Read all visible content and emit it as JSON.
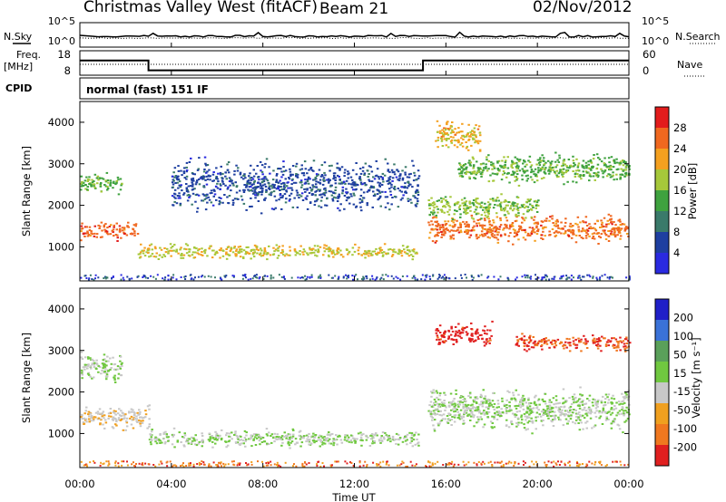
{
  "header": {
    "title": "Christmas Valley West (fitACF)",
    "beam": "Beam 21",
    "date": "02/Nov/2012"
  },
  "noise_panel": {
    "left_label": "N.Sky",
    "right_label": "N.Search",
    "left_ticks": [
      "10^5",
      "10^0"
    ],
    "right_ticks": [
      "10^5",
      "10^0"
    ]
  },
  "freq_panel": {
    "left_label_line1": "Freq.",
    "left_label_line2": "[MHz]",
    "right_label": "Nave",
    "left_ticks": [
      "18",
      "8"
    ],
    "right_ticks": [
      "60",
      "0"
    ],
    "freq_steps": [
      {
        "start_hour": 0,
        "end_hour": 3.0,
        "mhz": 14.0
      },
      {
        "start_hour": 3.0,
        "end_hour": 15.0,
        "mhz": 10.0
      },
      {
        "start_hour": 15.0,
        "end_hour": 24.0,
        "mhz": 14.0
      }
    ]
  },
  "cpid": {
    "label": "CPID",
    "program": "normal (fast) 151 IF"
  },
  "power_panel": {
    "ylabel": "Slant Range [km]",
    "y_ticks": [
      "4000",
      "3000",
      "2000",
      "1000"
    ],
    "colorbar_label": "Power [dB]",
    "colorbar_ticks": [
      "28",
      "24",
      "20",
      "16",
      "12",
      "8",
      "4"
    ],
    "colors": [
      "#2a2ae0",
      "#1e3fa0",
      "#3a7a6a",
      "#3fa23f",
      "#a6c83a",
      "#f4a020",
      "#f06820",
      "#e21c1c"
    ]
  },
  "velocity_panel": {
    "ylabel": "Slant Range [km]",
    "y_ticks": [
      "4000",
      "3000",
      "2000",
      "1000"
    ],
    "colorbar_label": "Velocity [m s⁻¹]",
    "colorbar_ticks": [
      "200",
      "100",
      "50",
      "15",
      "-15",
      "-50",
      "-100",
      "-200"
    ],
    "colors": [
      "#2020c8",
      "#3a72d8",
      "#5aa05a",
      "#70c840",
      "#c8c8c8",
      "#f0a020",
      "#f07820",
      "#e02020"
    ]
  },
  "x_axis": {
    "label": "Time UT",
    "ticks": [
      "00:00",
      "04:00",
      "08:00",
      "12:00",
      "16:00",
      "20:00",
      "00:00"
    ]
  },
  "chart_data": [
    {
      "type": "line",
      "title": "N.Sky / N.Search",
      "x": [
        0,
        4,
        8,
        12,
        16,
        20,
        24
      ],
      "series": [
        {
          "name": "N.Sky",
          "values": [
            1.2,
            1.2,
            1.2,
            1.2,
            1.2,
            1.2,
            1.2
          ]
        }
      ]
    },
    {
      "type": "line",
      "title": "Freq. [MHz]",
      "x": [
        0,
        3,
        3,
        15,
        15,
        24
      ],
      "series": [
        {
          "name": "Freq.",
          "values": [
            14,
            14,
            10,
            10,
            14,
            14
          ]
        }
      ],
      "ylim": [
        8,
        18
      ]
    },
    {
      "type": "heatmap",
      "title": "Power [dB]",
      "xlabel": "Time UT",
      "ylabel": "Slant Range [km]",
      "xlim": [
        0,
        24
      ],
      "ylim": [
        180,
        4500
      ],
      "color_range": [
        0,
        30
      ],
      "features": [
        {
          "x_start": 0.0,
          "x_end": 2.5,
          "range_center": 1400,
          "range_width": 300,
          "power": 25
        },
        {
          "x_start": 2.5,
          "x_end": 14.8,
          "range_center": 900,
          "range_width": 250,
          "power": 18
        },
        {
          "x_start": 0.0,
          "x_end": 1.8,
          "range_center": 2550,
          "range_width": 350,
          "power": 14
        },
        {
          "x_start": 4.0,
          "x_end": 14.8,
          "range_center": 2500,
          "range_width": 900,
          "power": 6
        },
        {
          "x_start": 15.2,
          "x_end": 24.0,
          "range_center": 1450,
          "range_width": 450,
          "power": 24
        },
        {
          "x_start": 15.2,
          "x_end": 20.0,
          "range_center": 2000,
          "range_width": 400,
          "power": 16
        },
        {
          "x_start": 16.5,
          "x_end": 24.0,
          "range_center": 2900,
          "range_width": 500,
          "power": 14
        },
        {
          "x_start": 15.5,
          "x_end": 17.5,
          "range_center": 3700,
          "range_width": 500,
          "power": 20
        }
      ]
    },
    {
      "type": "heatmap",
      "title": "Velocity [m s⁻¹]",
      "xlabel": "Time UT",
      "ylabel": "Slant Range [km]",
      "xlim": [
        0,
        24
      ],
      "ylim": [
        180,
        4500
      ],
      "color_range": [
        -200,
        200
      ],
      "features": [
        {
          "x_start": 0.0,
          "x_end": 3.0,
          "range_center": 1400,
          "range_width": 400,
          "velocity": -40
        },
        {
          "x_start": 3.0,
          "x_end": 14.8,
          "range_center": 900,
          "range_width": 300,
          "velocity": 0
        },
        {
          "x_start": 0.0,
          "x_end": 1.8,
          "range_center": 2600,
          "range_width": 500,
          "velocity": 0
        },
        {
          "x_start": 15.2,
          "x_end": 24.0,
          "range_center": 1600,
          "range_width": 700,
          "velocity": 0
        },
        {
          "x_start": 19.0,
          "x_end": 24.0,
          "range_center": 3200,
          "range_width": 300,
          "velocity": -150
        },
        {
          "x_start": 15.5,
          "x_end": 18.0,
          "range_center": 3400,
          "range_width": 400,
          "velocity": -180
        }
      ]
    }
  ]
}
